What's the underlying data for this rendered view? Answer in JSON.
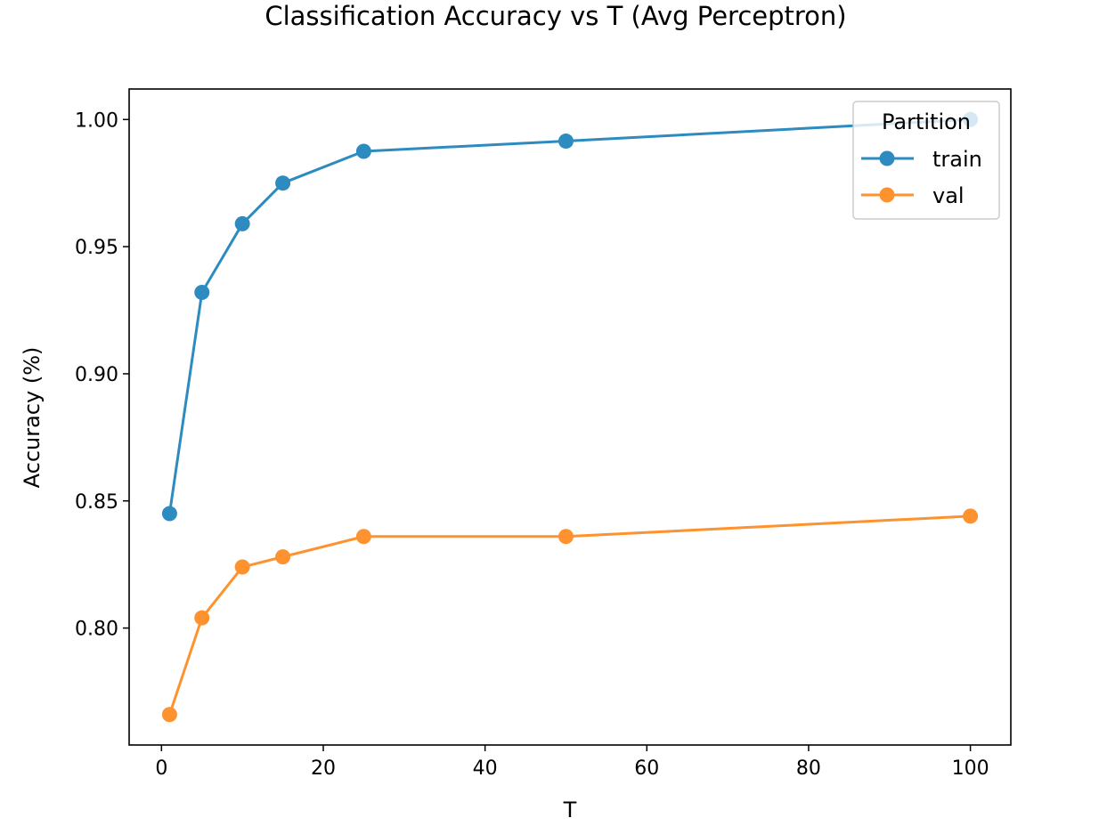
{
  "chart_data": {
    "type": "line",
    "title": "Classification Accuracy vs T (Avg Perceptron)",
    "xlabel": "T",
    "ylabel": "Accuracy (%)",
    "xlim": [
      -4,
      105
    ],
    "ylim": [
      0.754,
      1.012
    ],
    "xticks": [
      0,
      20,
      40,
      60,
      80,
      100
    ],
    "xtick_labels": [
      "0",
      "20",
      "40",
      "60",
      "80",
      "100"
    ],
    "yticks": [
      0.8,
      0.85,
      0.9,
      0.95,
      1.0
    ],
    "ytick_labels": [
      "0.80",
      "0.85",
      "0.90",
      "0.95",
      "1.00"
    ],
    "grid": false,
    "legend": {
      "title": "Partition",
      "placement": "top-right"
    },
    "x": [
      1,
      5,
      10,
      15,
      25,
      50,
      100
    ],
    "series": [
      {
        "name": "train",
        "color": "#2e8bc0",
        "values": [
          0.845,
          0.932,
          0.959,
          0.975,
          0.9875,
          0.9915,
          1.0
        ]
      },
      {
        "name": "val",
        "color": "#fd922f",
        "values": [
          0.766,
          0.804,
          0.824,
          0.828,
          0.836,
          0.836,
          0.844
        ]
      }
    ]
  }
}
